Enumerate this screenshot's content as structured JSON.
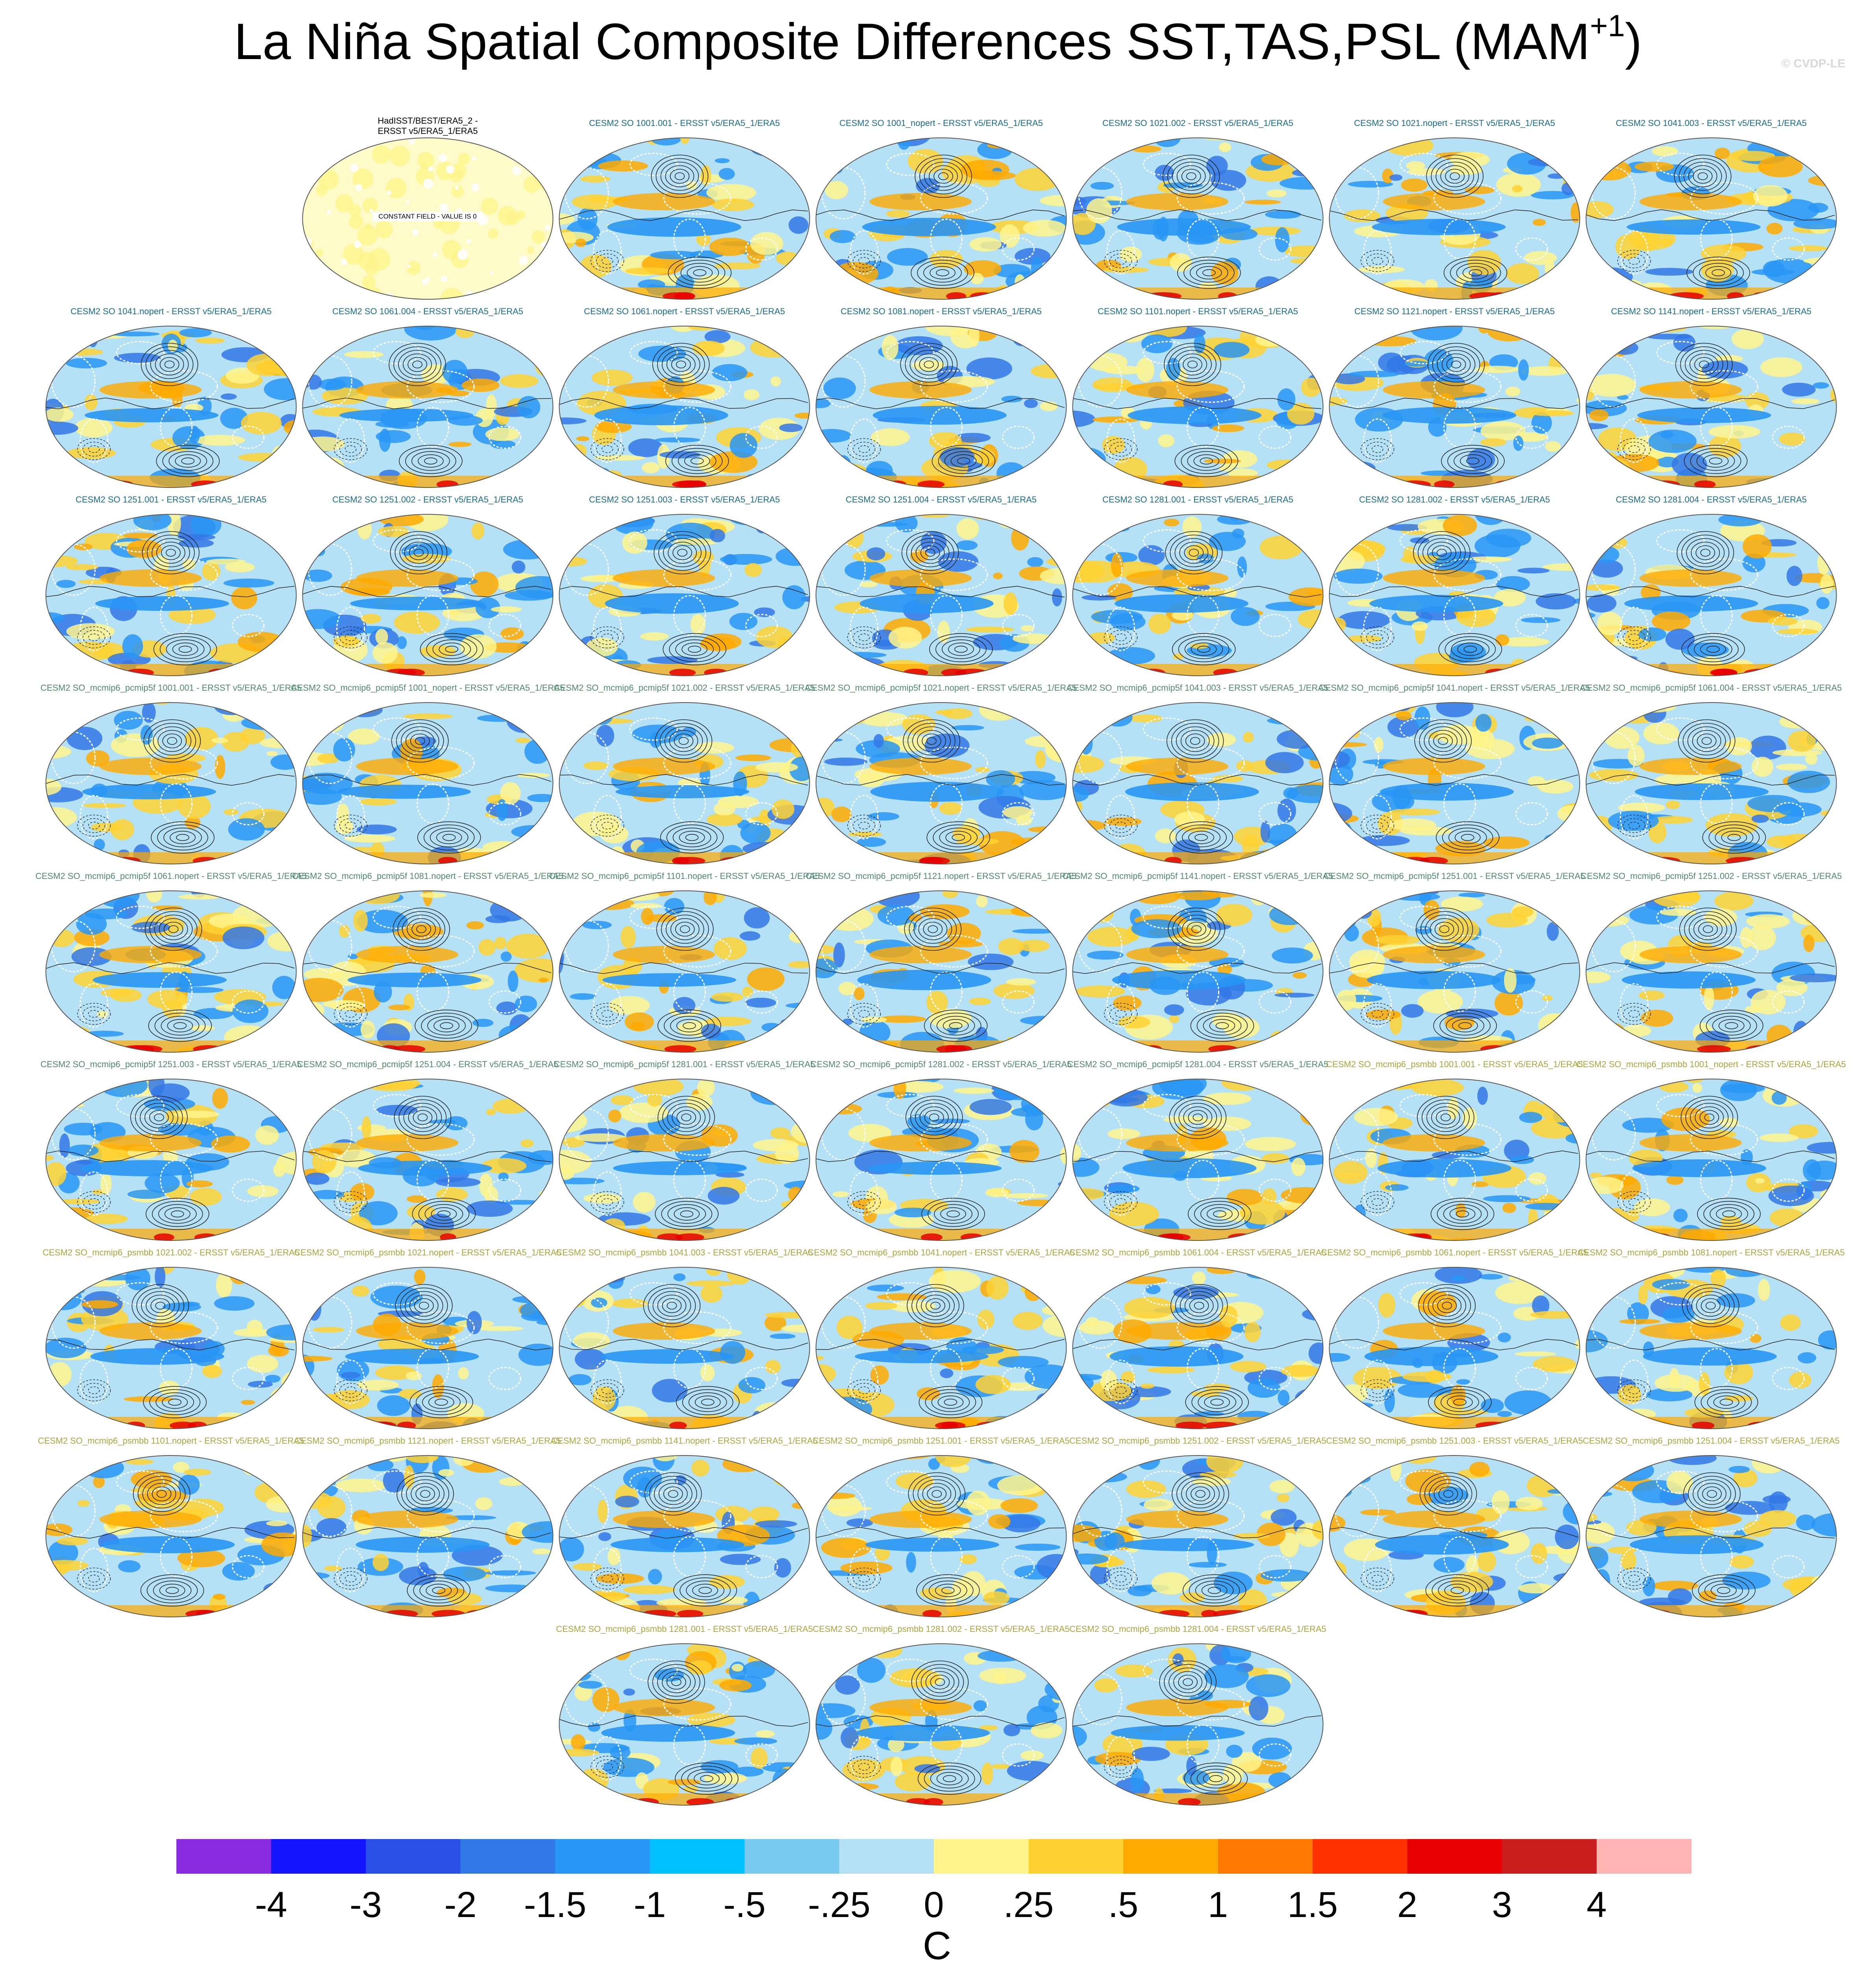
{
  "title": {
    "main": "La Niña Spatial Composite Differences SST,TAS,PSL (MAM",
    "superscript": "+1",
    "close": ")"
  },
  "watermark": "© CVDP-LE",
  "obs_panel": {
    "title_line1": "HadISST/BEST/ERA5_2 -",
    "title_line2": "ERSST v5/ERA5_1/ERA5",
    "label": "CONSTANT FIELD - VALUE IS 0"
  },
  "panels": [
    {
      "title": "CESM2 SO 1001.001 - ERSST v5/ERA5_1/ERA5",
      "color": "#1a6e8c"
    },
    {
      "title": "CESM2 SO 1001_nopert - ERSST v5/ERA5_1/ERA5",
      "color": "#1a6e8c"
    },
    {
      "title": "CESM2 SO 1021.002 - ERSST v5/ERA5_1/ERA5",
      "color": "#1a6e8c"
    },
    {
      "title": "CESM2 SO 1021.nopert - ERSST v5/ERA5_1/ERA5",
      "color": "#1a6e8c"
    },
    {
      "title": "CESM2 SO 1041.003 - ERSST v5/ERA5_1/ERA5",
      "color": "#1a6e8c"
    },
    {
      "title": "CESM2 SO 1041.nopert - ERSST v5/ERA5_1/ERA5",
      "color": "#1a6e8c"
    },
    {
      "title": "CESM2 SO 1061.004 - ERSST v5/ERA5_1/ERA5",
      "color": "#1a6e8c"
    },
    {
      "title": "CESM2 SO 1061.nopert - ERSST v5/ERA5_1/ERA5",
      "color": "#1a6e8c"
    },
    {
      "title": "CESM2 SO 1081.nopert - ERSST v5/ERA5_1/ERA5",
      "color": "#1a6e8c"
    },
    {
      "title": "CESM2 SO 1101.nopert - ERSST v5/ERA5_1/ERA5",
      "color": "#1a6e8c"
    },
    {
      "title": "CESM2 SO 1121.nopert - ERSST v5/ERA5_1/ERA5",
      "color": "#1a6e8c"
    },
    {
      "title": "CESM2 SO 1141.nopert - ERSST v5/ERA5_1/ERA5",
      "color": "#1a6e8c"
    },
    {
      "title": "CESM2 SO 1251.001 - ERSST v5/ERA5_1/ERA5",
      "color": "#1a6e8c"
    },
    {
      "title": "CESM2 SO 1251.002 - ERSST v5/ERA5_1/ERA5",
      "color": "#1a6e8c"
    },
    {
      "title": "CESM2 SO 1251.003 - ERSST v5/ERA5_1/ERA5",
      "color": "#1a6e8c"
    },
    {
      "title": "CESM2 SO 1251.004 - ERSST v5/ERA5_1/ERA5",
      "color": "#1a6e8c"
    },
    {
      "title": "CESM2 SO 1281.001 - ERSST v5/ERA5_1/ERA5",
      "color": "#1a6e8c"
    },
    {
      "title": "CESM2 SO 1281.002 - ERSST v5/ERA5_1/ERA5",
      "color": "#1a6e8c"
    },
    {
      "title": "CESM2 SO 1281.004 - ERSST v5/ERA5_1/ERA5",
      "color": "#1a6e8c"
    },
    {
      "title": "CESM2 SO_mcmip6_pcmip5f 1001.001 - ERSST v5/ERA5_1/ERA5",
      "color": "#4f8a6c"
    },
    {
      "title": "CESM2 SO_mcmip6_pcmip5f 1001_nopert - ERSST v5/ERA5_1/ERA5",
      "color": "#4f8a6c"
    },
    {
      "title": "CESM2 SO_mcmip6_pcmip5f 1021.002 - ERSST v5/ERA5_1/ERA5",
      "color": "#4f8a6c"
    },
    {
      "title": "CESM2 SO_mcmip6_pcmip5f 1021.nopert - ERSST v5/ERA5_1/ERA5",
      "color": "#4f8a6c"
    },
    {
      "title": "CESM2 SO_mcmip6_pcmip5f 1041.003 - ERSST v5/ERA5_1/ERA5",
      "color": "#4f8a6c"
    },
    {
      "title": "CESM2 SO_mcmip6_pcmip5f 1041.nopert - ERSST v5/ERA5_1/ERA5",
      "color": "#4f8a6c"
    },
    {
      "title": "CESM2 SO_mcmip6_pcmip5f 1061.004 - ERSST v5/ERA5_1/ERA5",
      "color": "#4f8a6c"
    },
    {
      "title": "CESM2 SO_mcmip6_pcmip5f 1061.nopert - ERSST v5/ERA5_1/ERA5",
      "color": "#4f8a6c"
    },
    {
      "title": "CESM2 SO_mcmip6_pcmip5f 1081.nopert - ERSST v5/ERA5_1/ERA5",
      "color": "#4f8a6c"
    },
    {
      "title": "CESM2 SO_mcmip6_pcmip5f 1101.nopert - ERSST v5/ERA5_1/ERA5",
      "color": "#4f8a6c"
    },
    {
      "title": "CESM2 SO_mcmip6_pcmip5f 1121.nopert - ERSST v5/ERA5_1/ERA5",
      "color": "#4f8a6c"
    },
    {
      "title": "CESM2 SO_mcmip6_pcmip5f 1141.nopert - ERSST v5/ERA5_1/ERA5",
      "color": "#4f8a6c"
    },
    {
      "title": "CESM2 SO_mcmip6_pcmip5f 1251.001 - ERSST v5/ERA5_1/ERA5",
      "color": "#4f8a6c"
    },
    {
      "title": "CESM2 SO_mcmip6_pcmip5f 1251.002 - ERSST v5/ERA5_1/ERA5",
      "color": "#4f8a6c"
    },
    {
      "title": "CESM2 SO_mcmip6_pcmip5f 1251.003 - ERSST v5/ERA5_1/ERA5",
      "color": "#4f8a6c"
    },
    {
      "title": "CESM2 SO_mcmip6_pcmip5f 1251.004 - ERSST v5/ERA5_1/ERA5",
      "color": "#4f8a6c"
    },
    {
      "title": "CESM2 SO_mcmip6_pcmip5f 1281.001 - ERSST v5/ERA5_1/ERA5",
      "color": "#4f8a6c"
    },
    {
      "title": "CESM2 SO_mcmip6_pcmip5f 1281.002 - ERSST v5/ERA5_1/ERA5",
      "color": "#4f8a6c"
    },
    {
      "title": "CESM2 SO_mcmip6_pcmip5f 1281.004 - ERSST v5/ERA5_1/ERA5",
      "color": "#4f8a6c"
    },
    {
      "title": "CESM2 SO_mcmip6_psmbb 1001.001 - ERSST v5/ERA5_1/ERA5",
      "color": "#a9a640"
    },
    {
      "title": "CESM2 SO_mcmip6_psmbb 1001_nopert - ERSST v5/ERA5_1/ERA5",
      "color": "#a9a640"
    },
    {
      "title": "CESM2 SO_mcmip6_psmbb 1021.002 - ERSST v5/ERA5_1/ERA5",
      "color": "#a9a640"
    },
    {
      "title": "CESM2 SO_mcmip6_psmbb 1021.nopert - ERSST v5/ERA5_1/ERA5",
      "color": "#a9a640"
    },
    {
      "title": "CESM2 SO_mcmip6_psmbb 1041.003 - ERSST v5/ERA5_1/ERA5",
      "color": "#a9a640"
    },
    {
      "title": "CESM2 SO_mcmip6_psmbb 1041.nopert - ERSST v5/ERA5_1/ERA5",
      "color": "#a9a640"
    },
    {
      "title": "CESM2 SO_mcmip6_psmbb 1061.004 - ERSST v5/ERA5_1/ERA5",
      "color": "#a9a640"
    },
    {
      "title": "CESM2 SO_mcmip6_psmbb 1061.nopert - ERSST v5/ERA5_1/ERA5",
      "color": "#a9a640"
    },
    {
      "title": "CESM2 SO_mcmip6_psmbb 1081.nopert - ERSST v5/ERA5_1/ERA5",
      "color": "#a9a640"
    },
    {
      "title": "CESM2 SO_mcmip6_psmbb 1101.nopert - ERSST v5/ERA5_1/ERA5",
      "color": "#a9a640"
    },
    {
      "title": "CESM2 SO_mcmip6_psmbb 1121.nopert - ERSST v5/ERA5_1/ERA5",
      "color": "#a9a640"
    },
    {
      "title": "CESM2 SO_mcmip6_psmbb 1141.nopert - ERSST v5/ERA5_1/ERA5",
      "color": "#a9a640"
    },
    {
      "title": "CESM2 SO_mcmip6_psmbb 1251.001 - ERSST v5/ERA5_1/ERA5",
      "color": "#a9a640"
    },
    {
      "title": "CESM2 SO_mcmip6_psmbb 1251.002 - ERSST v5/ERA5_1/ERA5",
      "color": "#a9a640"
    },
    {
      "title": "CESM2 SO_mcmip6_psmbb 1251.003 - ERSST v5/ERA5_1/ERA5",
      "color": "#a9a640"
    },
    {
      "title": "CESM2 SO_mcmip6_psmbb 1251.004 - ERSST v5/ERA5_1/ERA5",
      "color": "#a9a640"
    },
    {
      "title": "CESM2 SO_mcmip6_psmbb 1281.001 - ERSST v5/ERA5_1/ERA5",
      "color": "#a9a640"
    },
    {
      "title": "CESM2 SO_mcmip6_psmbb 1281.002 - ERSST v5/ERA5_1/ERA5",
      "color": "#a9a640"
    },
    {
      "title": "CESM2 SO_mcmip6_psmbb 1281.004 - ERSST v5/ERA5_1/ERA5",
      "color": "#a9a640"
    }
  ],
  "colorbar": {
    "colors": [
      "#8a2be2",
      "#1414ff",
      "#2850e6",
      "#3278e6",
      "#2896f5",
      "#00c0ff",
      "#78c8f0",
      "#b4e1f5",
      "#fff58c",
      "#ffd232",
      "#ffaa00",
      "#ff7800",
      "#ff3200",
      "#e60000",
      "#c81e1e",
      "#ffb4b4"
    ],
    "tick_labels": [
      "-4",
      "-3",
      "-2",
      "-1.5",
      "-1",
      "-.5",
      "-.25",
      "0",
      ".25",
      ".5",
      "1",
      "1.5",
      "2",
      "3",
      "4"
    ],
    "units": "C"
  },
  "map_colors": {
    "ocean_bg": "#b4e1f5",
    "cool": "#2896f5",
    "deep_cool": "#3278e6",
    "warm": "#ffd232",
    "deep_warm": "#ffaa00",
    "hot": "#e60000",
    "light_warm": "#fff58c",
    "coast": "#ffffff",
    "contour": "#222222"
  }
}
